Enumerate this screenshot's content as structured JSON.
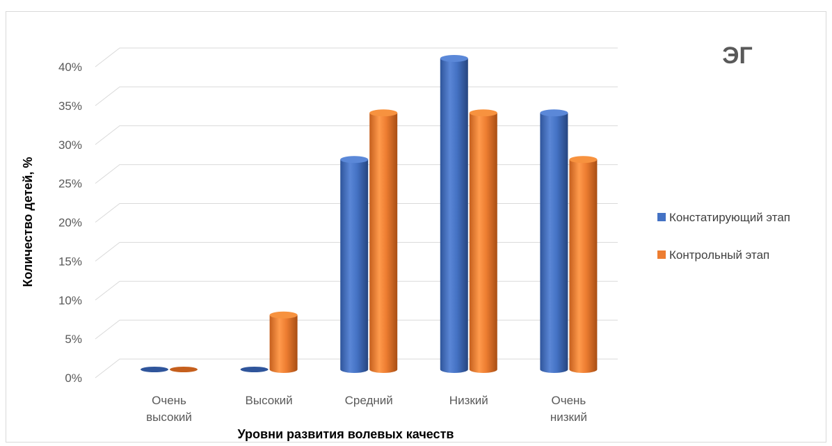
{
  "chart_data": {
    "type": "bar",
    "title": "ЭГ",
    "xlabel": "Уровни развития волевых качеств",
    "ylabel": "Количество детей, %",
    "categories": [
      [
        "Очень",
        "высокий"
      ],
      [
        "Высокий"
      ],
      [
        "Средний"
      ],
      [
        "Низкий"
      ],
      [
        "Очень",
        "низкий"
      ]
    ],
    "series": [
      {
        "name": "Констатирующий этап",
        "values": [
          0,
          0,
          27,
          40,
          33
        ],
        "color": "#4472c4"
      },
      {
        "name": "Контрольный этап",
        "values": [
          0,
          7,
          33,
          33,
          27
        ],
        "color": "#ed7d31"
      }
    ],
    "yticks": [
      "0%",
      "5%",
      "10%",
      "15%",
      "20%",
      "25%",
      "30%",
      "35%",
      "40%"
    ],
    "ylim": [
      0,
      40
    ],
    "grid": true,
    "style": "3d-cylinder",
    "legend_position": "right"
  }
}
